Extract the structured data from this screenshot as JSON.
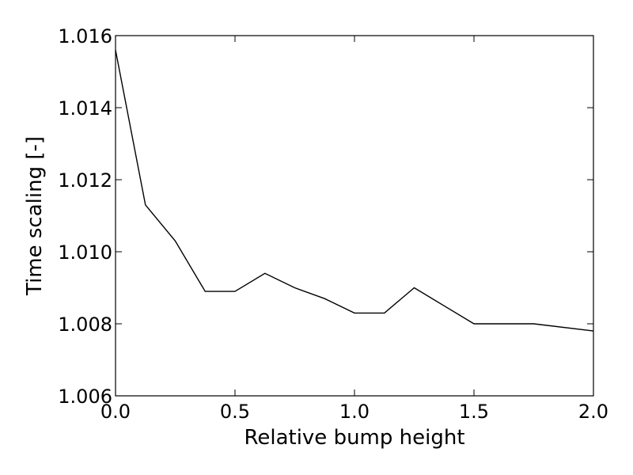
{
  "chart_data": {
    "type": "line",
    "xlabel": "Relative bump height",
    "ylabel": "Time scaling [-]",
    "xlim": [
      0.0,
      2.0
    ],
    "ylim": [
      1.006,
      1.016
    ],
    "x_ticks": [
      0.0,
      0.5,
      1.0,
      1.5,
      2.0
    ],
    "x_tick_labels": [
      "0.0",
      "0.5",
      "1.0",
      "1.5",
      "2.0"
    ],
    "y_ticks": [
      1.006,
      1.008,
      1.01,
      1.012,
      1.014,
      1.016
    ],
    "y_tick_labels": [
      "1.006",
      "1.008",
      "1.010",
      "1.012",
      "1.014",
      "1.016"
    ],
    "grid": false,
    "series": [
      {
        "color": "#000000",
        "x": [
          0.0,
          0.125,
          0.25,
          0.375,
          0.5,
          0.625,
          0.75,
          0.875,
          1.0,
          1.125,
          1.25,
          1.375,
          1.5,
          1.75,
          2.0
        ],
        "y": [
          1.0156,
          1.0113,
          1.0103,
          1.0089,
          1.0089,
          1.0094,
          1.009,
          1.0087,
          1.0083,
          1.0083,
          1.009,
          1.0085,
          1.008,
          1.008,
          1.0078
        ]
      }
    ]
  }
}
